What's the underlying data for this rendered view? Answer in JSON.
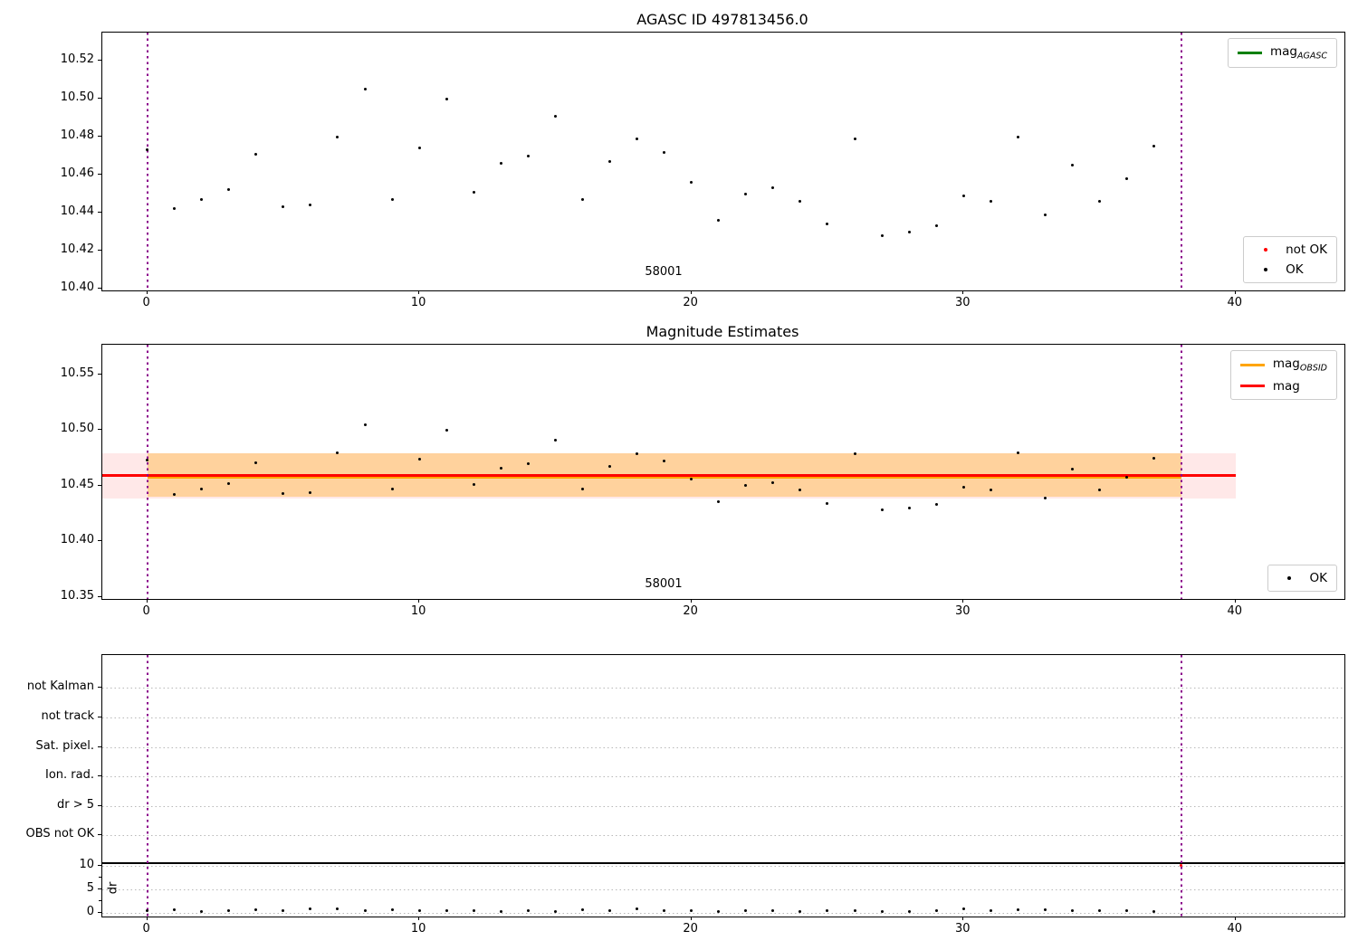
{
  "colors": {
    "ok_marker": "#000000",
    "not_ok_marker": "#ff0000",
    "mag_agasc_line": "#008000",
    "mag_obsid_line": "#ffa500",
    "mag_line": "#ff0000",
    "obsid_band": "rgba(255,165,0,0.32)",
    "mag_band": "rgba(255,0,0,0.09)",
    "vline": "#8b008b",
    "grid": "#b8b8b8"
  },
  "chart_data": [
    {
      "type": "scatter",
      "title": "AGASC ID 497813456.0",
      "xlim": [
        -1.65,
        44.0
      ],
      "ylim": [
        10.399,
        10.535
      ],
      "xticks": [
        0,
        10,
        20,
        30,
        40
      ],
      "yticks": [
        10.4,
        10.42,
        10.44,
        10.46,
        10.48,
        10.5,
        10.52
      ],
      "vlines": [
        0,
        38
      ],
      "annotation": {
        "text": "58001",
        "x": 19
      },
      "legends": [
        {
          "pos": "top-right",
          "items": [
            {
              "label": "mag",
              "sub": "AGASC",
              "marker": "line",
              "color": "#008000"
            }
          ]
        },
        {
          "pos": "bottom-right",
          "items": [
            {
              "label": "not OK",
              "marker": "dot",
              "color": "#ff0000"
            },
            {
              "label": "OK",
              "marker": "dot",
              "color": "#000000"
            }
          ]
        }
      ],
      "series_name": "OK",
      "x": [
        0,
        1,
        2,
        3,
        4,
        5,
        6,
        7,
        8,
        9,
        10,
        11,
        12,
        13,
        14,
        15,
        16,
        17,
        18,
        19,
        20,
        21,
        22,
        23,
        24,
        25,
        26,
        27,
        28,
        29,
        30,
        31,
        32,
        33,
        34,
        35,
        36,
        37
      ],
      "y": [
        10.473,
        10.442,
        10.447,
        10.452,
        10.471,
        10.443,
        10.444,
        10.48,
        10.505,
        10.447,
        10.474,
        10.5,
        10.451,
        10.466,
        10.47,
        10.491,
        10.447,
        10.467,
        10.479,
        10.472,
        10.456,
        10.436,
        10.45,
        10.453,
        10.446,
        10.434,
        10.479,
        10.428,
        10.43,
        10.433,
        10.449,
        10.446,
        10.48,
        10.439,
        10.465,
        10.446,
        10.458,
        10.475
      ]
    },
    {
      "type": "scatter",
      "title": "Magnitude Estimates",
      "xlim": [
        -1.65,
        44.0
      ],
      "ylim": [
        10.348,
        10.577
      ],
      "xticks": [
        0,
        10,
        20,
        30,
        40
      ],
      "yticks": [
        10.35,
        10.4,
        10.45,
        10.5,
        10.55
      ],
      "vlines": [
        0,
        38
      ],
      "annotation": {
        "text": "58001",
        "x": 19
      },
      "mag_line": {
        "value": 10.459,
        "x_range": [
          -1.65,
          40
        ],
        "color": "#ff0000"
      },
      "mag_obsid_line": {
        "value": 10.4585,
        "x_range": [
          0,
          38
        ],
        "color": "#ffa500"
      },
      "mag_band": {
        "lo": 10.4385,
        "hi": 10.4795,
        "x_range": [
          -1.65,
          40
        ],
        "color": "rgba(255,0,0,0.09)"
      },
      "obsid_band": {
        "lo": 10.44,
        "hi": 10.479,
        "x_range": [
          0,
          38
        ],
        "color": "rgba(255,165,0,0.32)"
      },
      "legends": [
        {
          "pos": "top-right",
          "items": [
            {
              "label": "mag",
              "sub": "OBSID",
              "marker": "line",
              "color": "#ffa500"
            },
            {
              "label": "mag",
              "sub": "",
              "marker": "line",
              "color": "#ff0000"
            }
          ]
        },
        {
          "pos": "bottom-right",
          "items": [
            {
              "label": "OK",
              "marker": "dot",
              "color": "#000000"
            }
          ]
        }
      ],
      "series_name": "OK",
      "x": [
        0,
        1,
        2,
        3,
        4,
        5,
        6,
        7,
        8,
        9,
        10,
        11,
        12,
        13,
        14,
        15,
        16,
        17,
        18,
        19,
        20,
        21,
        22,
        23,
        24,
        25,
        26,
        27,
        28,
        29,
        30,
        31,
        32,
        33,
        34,
        35,
        36,
        37
      ],
      "y": [
        10.473,
        10.442,
        10.447,
        10.452,
        10.471,
        10.443,
        10.444,
        10.48,
        10.505,
        10.447,
        10.474,
        10.5,
        10.451,
        10.466,
        10.47,
        10.491,
        10.447,
        10.467,
        10.479,
        10.472,
        10.456,
        10.436,
        10.45,
        10.453,
        10.446,
        10.434,
        10.479,
        10.428,
        10.43,
        10.433,
        10.449,
        10.446,
        10.48,
        10.439,
        10.465,
        10.446,
        10.458,
        10.475
      ]
    },
    {
      "type": "flags",
      "title": "",
      "xlim": [
        -1.65,
        44.0
      ],
      "xticks": [
        0,
        10,
        20,
        30,
        40
      ],
      "flag_rows": [
        "not Kalman",
        "not track",
        "Sat. pixel.",
        "Ion. rad.",
        "dr > 5",
        "OBS not OK"
      ],
      "dr_ticks": [
        10,
        5,
        0
      ],
      "dr_minor_ticks": [
        7.5,
        2.5
      ],
      "ylabel": "dr",
      "vlines": [
        0,
        38
      ],
      "separator_dr": 10.6,
      "dr_x": [
        0,
        1,
        2,
        3,
        4,
        5,
        6,
        7,
        8,
        9,
        10,
        11,
        12,
        13,
        14,
        15,
        16,
        17,
        18,
        19,
        20,
        21,
        22,
        23,
        24,
        25,
        26,
        27,
        28,
        29,
        30,
        31,
        32,
        33,
        34,
        35,
        36,
        37
      ],
      "dr_y": [
        0.45,
        0.75,
        0.3,
        0.45,
        0.6,
        0.5,
        0.8,
        0.9,
        0.5,
        0.6,
        0.4,
        0.4,
        0.4,
        0.25,
        0.5,
        0.25,
        0.6,
        0.5,
        0.8,
        0.4,
        0.5,
        0.3,
        0.55,
        0.45,
        0.35,
        0.5,
        0.4,
        0.3,
        0.35,
        0.4,
        0.9,
        0.4,
        0.6,
        0.7,
        0.45,
        0.5,
        0.4,
        0.3
      ],
      "not_ok_points": [
        {
          "x": 38,
          "dr": 10
        }
      ]
    }
  ]
}
